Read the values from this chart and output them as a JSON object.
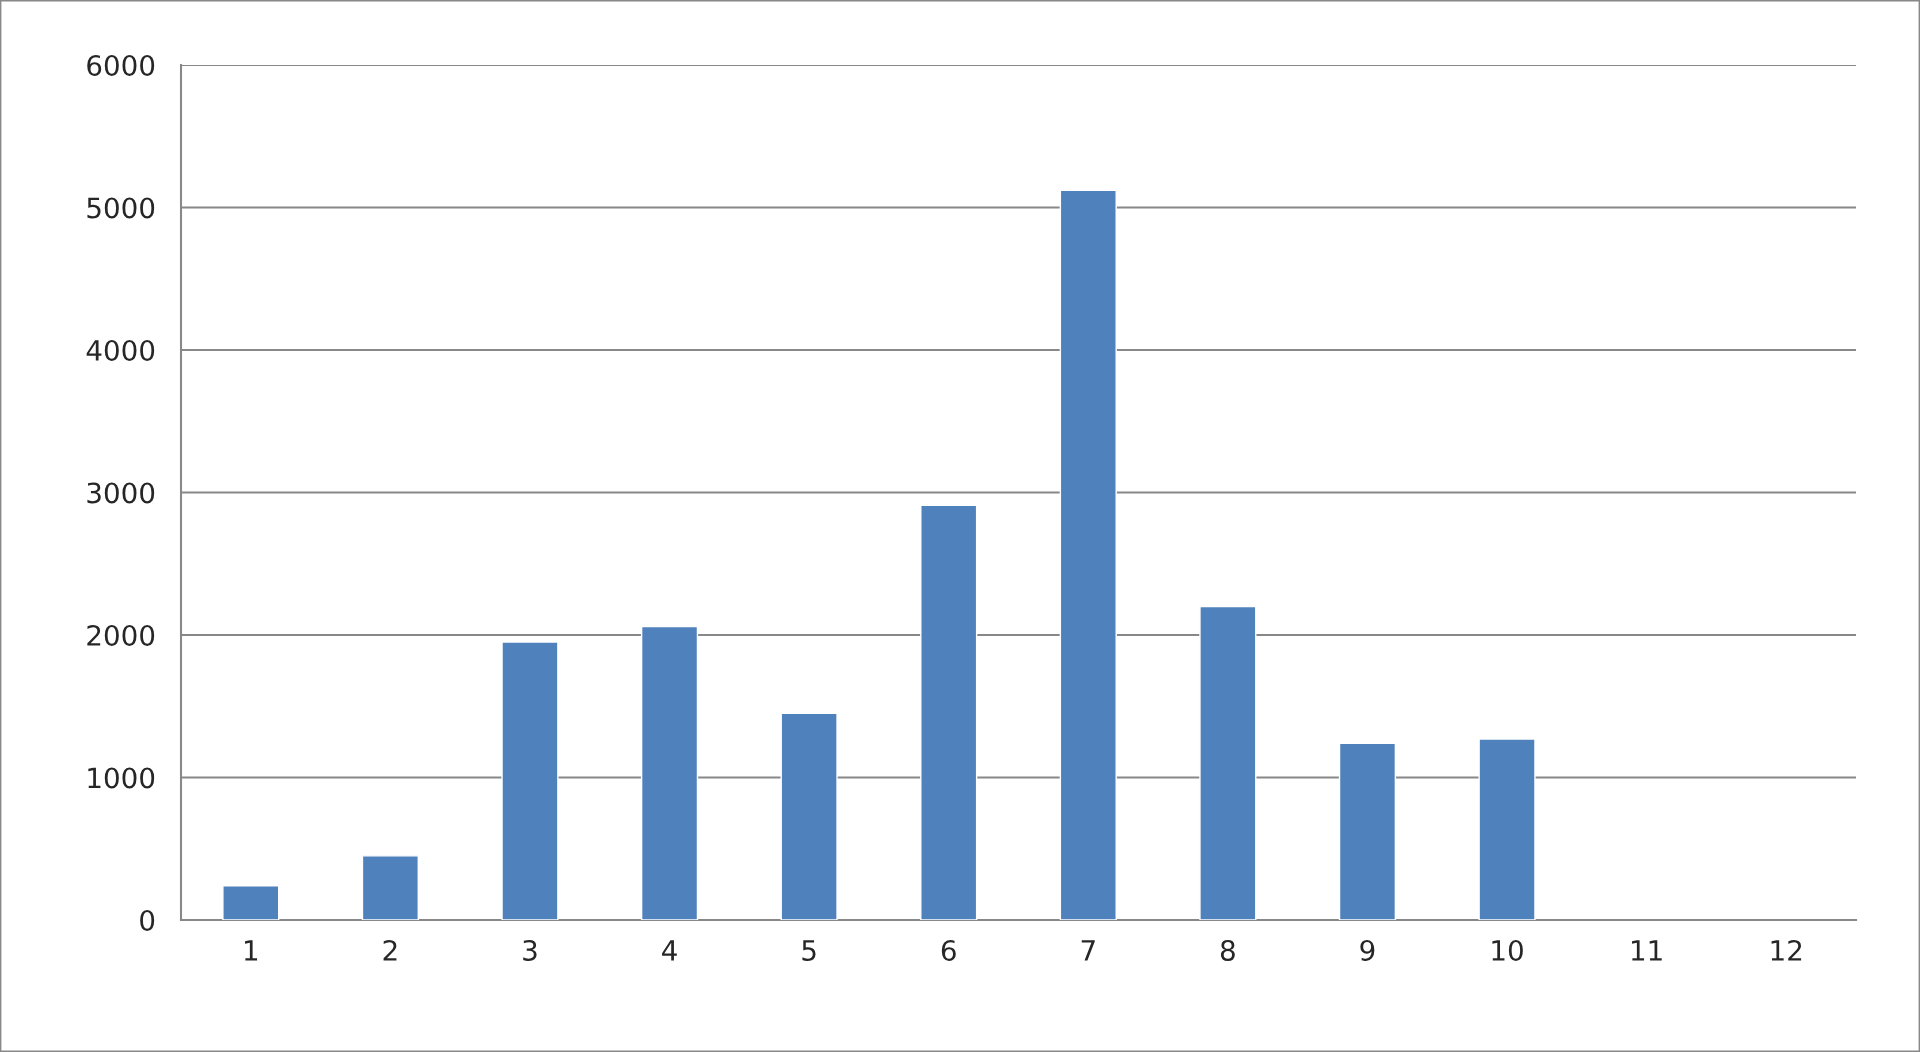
{
  "chart_data": {
    "type": "bar",
    "categories": [
      "1",
      "2",
      "3",
      "4",
      "5",
      "6",
      "7",
      "8",
      "9",
      "10",
      "11",
      "12"
    ],
    "values": [
      240,
      450,
      1950,
      2060,
      1450,
      2910,
      5120,
      2200,
      1240,
      1270,
      null,
      null
    ],
    "color": "#4f81bd",
    "ylim": [
      0,
      6000
    ],
    "yticks": [
      0,
      1000,
      2000,
      3000,
      4000,
      5000,
      6000
    ],
    "grid": "y"
  }
}
